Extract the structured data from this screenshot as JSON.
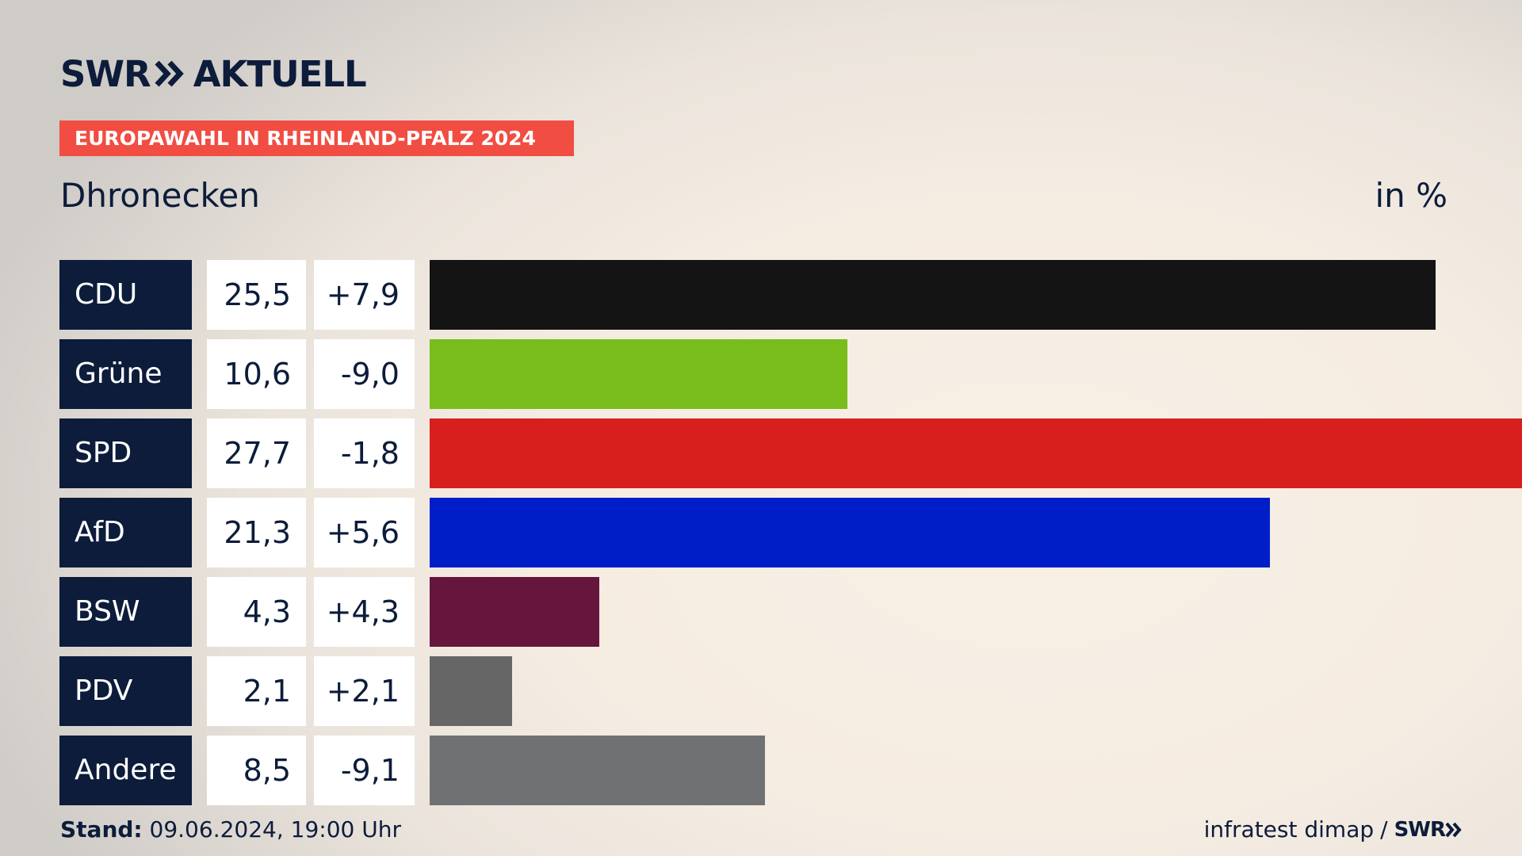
{
  "header": {
    "logo_left": "SWR",
    "logo_right": "AKTUELL",
    "banner": "EUROPAWAHL IN RHEINLAND-PFALZ 2024",
    "region": "Dhronecken",
    "unit": "in %"
  },
  "footer": {
    "stand_label": "Stand:",
    "stand_value": "09.06.2024, 19:00 Uhr",
    "source": "infratest dimap",
    "separator": "/",
    "source_logo": "SWR"
  },
  "chart_data": {
    "type": "bar",
    "orientation": "horizontal",
    "categories": [
      "CDU",
      "Grüne",
      "SPD",
      "AfD",
      "BSW",
      "PDV",
      "Andere"
    ],
    "values": [
      25.5,
      10.6,
      27.7,
      21.3,
      4.3,
      2.1,
      8.5
    ],
    "value_labels": [
      "25,5",
      "10,6",
      "27,7",
      "21,3",
      "4,3",
      "2,1",
      "8,5"
    ],
    "changes": [
      7.9,
      -9.0,
      -1.8,
      5.6,
      4.3,
      2.1,
      -9.1
    ],
    "change_labels": [
      "+7,9",
      "-9,0",
      "-1,8",
      "+5,6",
      "+4,3",
      "+2,1",
      "-9,1"
    ],
    "colors": [
      "#141414",
      "#78bd1c",
      "#d71f1d",
      "#001ec8",
      "#66153c",
      "#666666",
      "#707173"
    ],
    "xlim": [
      0,
      27.7
    ],
    "grid": false,
    "legend": "none"
  }
}
